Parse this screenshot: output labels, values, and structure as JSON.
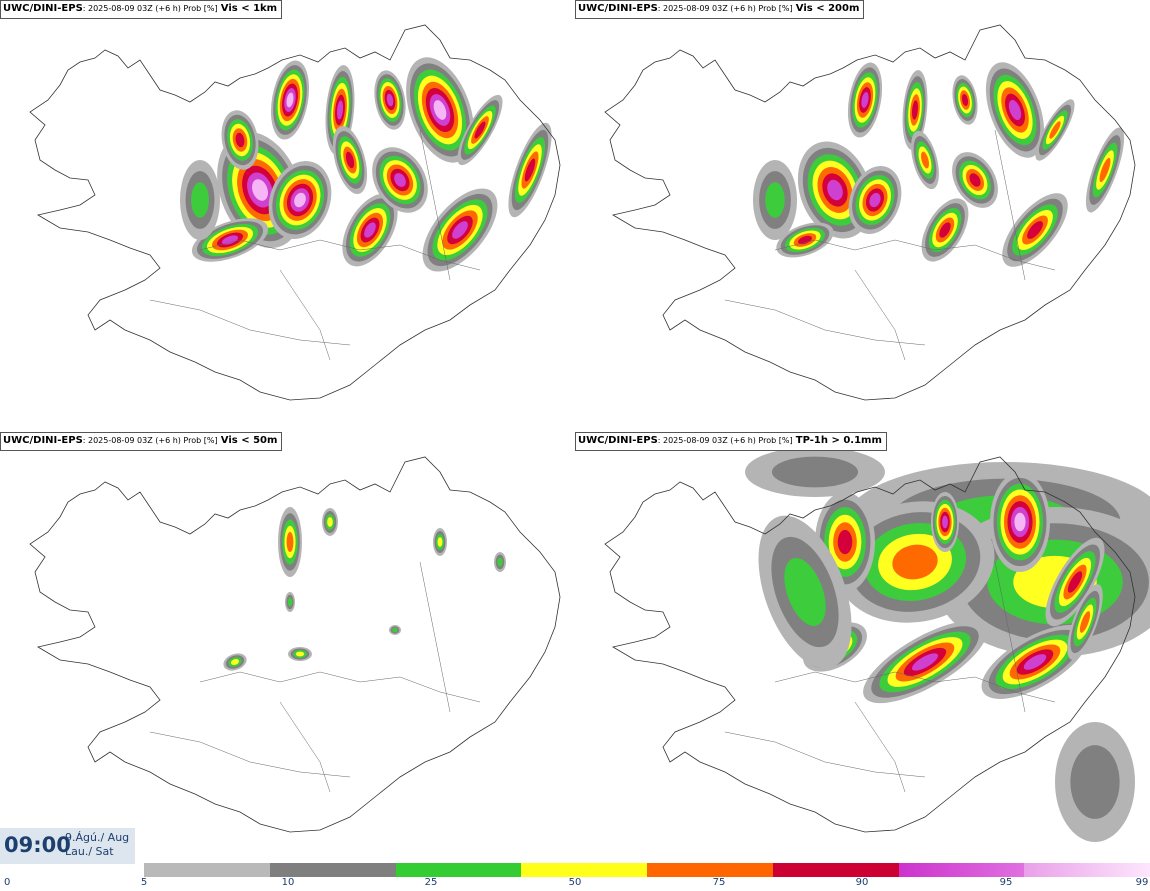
{
  "panels": [
    {
      "model": "UWC/DINI-EPS",
      "meta": ": 2025-08-09 03Z (+6 h) Prob [%]",
      "variable": "Vis < 1km"
    },
    {
      "model": "UWC/DINI-EPS",
      "meta": ": 2025-08-09 03Z (+6 h) Prob [%]",
      "variable": "Vis < 200m"
    },
    {
      "model": "UWC/DINI-EPS",
      "meta": ": 2025-08-09 03Z (+6 h) Prob [%]",
      "variable": "Vis < 50m"
    },
    {
      "model": "UWC/DINI-EPS",
      "meta": ": 2025-08-09 03Z (+6 h) Prob [%]",
      "variable": "TP-1h > 0.1mm"
    }
  ],
  "time": {
    "clock": "09:00",
    "date_line1": "9.Ágú./ Aug",
    "date_line2": "Lau./ Sat"
  },
  "legend": {
    "ticks": [
      "0",
      "5",
      "10",
      "25",
      "50",
      "75",
      "90",
      "95",
      "99"
    ],
    "colors": [
      "#b9b9b9",
      "#7f7f7f",
      "#33cc33",
      "#ffff1a",
      "#ff6600",
      "#cc0033",
      "#cc33cc",
      "#f4b0f4"
    ]
  },
  "map_colors": {
    "coast": "#333333",
    "l10": "#b4b4b4",
    "l25": "#808080",
    "l50": "#3ccc3c",
    "l75": "#ffff20",
    "l90": "#ff6a00",
    "l95": "#d4003c",
    "l99": "#d040d0",
    "ltop": "#f6b6f6"
  }
}
